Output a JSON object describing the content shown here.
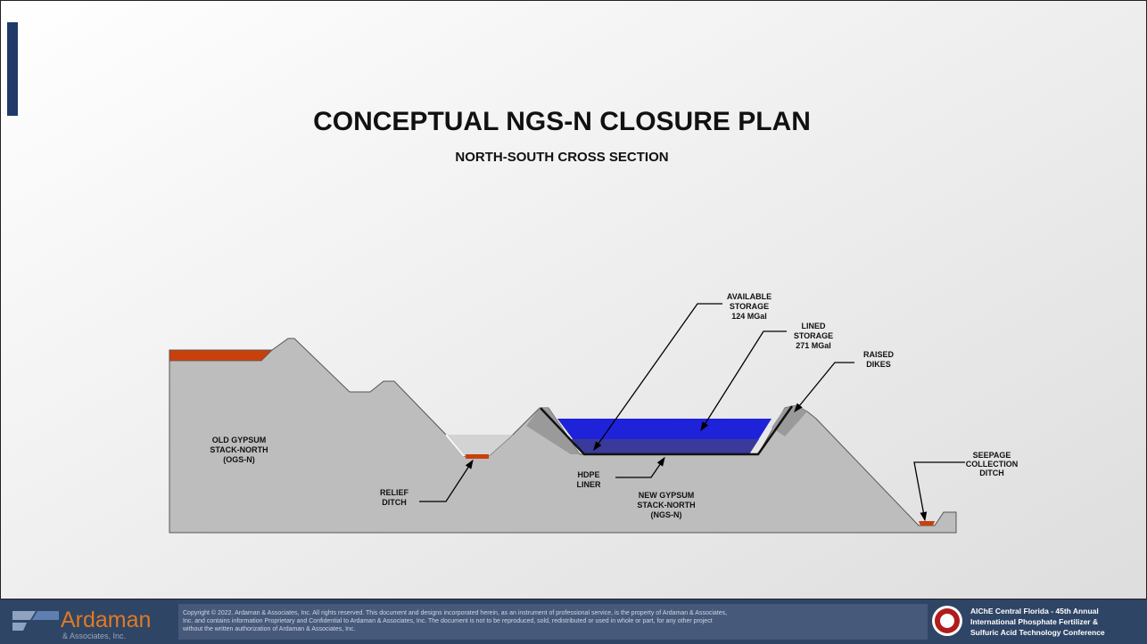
{
  "header": {
    "title": "CONCEPTUAL NGS-N CLOSURE PLAN",
    "subtitle": "NORTH-SOUTH CROSS SECTION"
  },
  "labels": [
    {
      "lines": [
        "AVAILABLE",
        "STORAGE",
        "124 MGal"
      ]
    },
    {
      "lines": [
        "LINED",
        "STORAGE",
        "271 MGal"
      ]
    },
    {
      "lines": [
        "RAISED",
        "DIKES"
      ]
    },
    {
      "lines": [
        "OLD GYPSUM",
        "STACK-NORTH",
        "(OGS-N)"
      ]
    },
    {
      "lines": [
        "RELIEF",
        "DITCH"
      ]
    },
    {
      "lines": [
        "HDPE",
        "LINER"
      ]
    },
    {
      "lines": [
        "NEW GYPSUM",
        "STACK-NORTH",
        "(NGS-N)"
      ]
    },
    {
      "lines": [
        "SEEPAGE",
        "COLLECTION",
        "DITCH"
      ]
    }
  ],
  "footer": {
    "logo": "Ardaman",
    "logo_sub": "& Associates, Inc.",
    "copyright": [
      "Copyright © 2022. Ardaman & Associates, Inc. All rights reserved. This document and designs incorporated herein, as an instrument of professional service, is the property of Ardaman & Associates,",
      "Inc. and contains information Proprietary and Confidential to Ardaman & Associates, Inc.  The document is not to be reproduced, sold, redistributed or used in whole or part, for any other project",
      "without the written authorization of Ardaman & Associates, Inc."
    ],
    "conference": [
      "AIChE Central Florida - 45th Annual",
      "International Phosphate Fertilizer &",
      "Sulfuric Acid Technology Conference"
    ]
  }
}
